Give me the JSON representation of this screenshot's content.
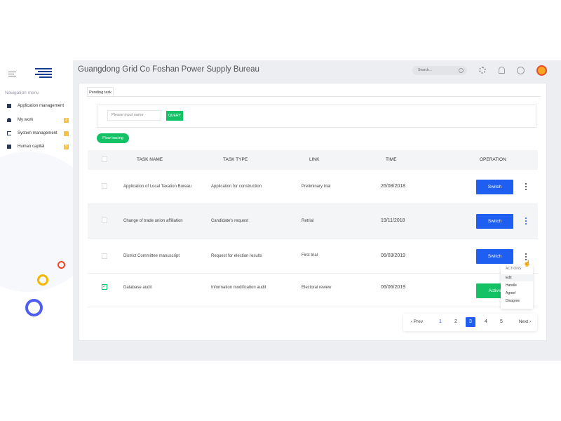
{
  "header": {
    "title": "Guangdong Grid Co Foshan Power Supply Bureau",
    "search_placeholder": "Search..."
  },
  "sidebar": {
    "heading": "Navigation menu",
    "items": [
      {
        "label": "Application management",
        "icon": "app-icon",
        "badge": null
      },
      {
        "label": "My work",
        "icon": "user-icon",
        "badge": "2"
      },
      {
        "label": "System management",
        "icon": "system-icon",
        "badge": ""
      },
      {
        "label": "Human capital",
        "icon": "grid-icon",
        "badge": "5"
      }
    ]
  },
  "tabs": [
    {
      "label": "Pending task"
    }
  ],
  "filter": {
    "placeholder": "Please input name",
    "query_label": "QUERY"
  },
  "flow_label": "Flow tracing",
  "table": {
    "headers": [
      "TASK NAME",
      "TASK TYPE",
      "LINK",
      "TIME",
      "OPERATION"
    ],
    "rows": [
      {
        "name": "Application of Local Taxation Bureau",
        "type": "Application for construction",
        "link": "Preliminary trial",
        "time": "26/08/2018",
        "action": "Switch",
        "checked": false
      },
      {
        "name": "Change of trade union affiliation",
        "type": "Candidate's request",
        "link": "Retrial",
        "time": "19/11/2018",
        "action": "Switch",
        "checked": false
      },
      {
        "name": "District Committee manuscript",
        "type": "Request for election results",
        "link": "First trial",
        "time": "06/03/2019",
        "action": "Switch",
        "checked": false
      },
      {
        "name": "Database audit",
        "type": "Information modification audit",
        "link": "Electoral review",
        "time": "06/06/2019",
        "action": "Active",
        "checked": true
      }
    ]
  },
  "actions_menu": {
    "title": "ACTIONS:",
    "items": [
      "Edit",
      "Handle",
      "Agree!",
      "Disagree"
    ]
  },
  "pagination": {
    "prev": "Prev",
    "next": "Next",
    "pages": [
      "1",
      "2",
      "3",
      "4",
      "5"
    ],
    "current": "3"
  },
  "colors": {
    "primary": "#1e5ef0",
    "success": "#12c264",
    "badge": "#f6c145"
  }
}
